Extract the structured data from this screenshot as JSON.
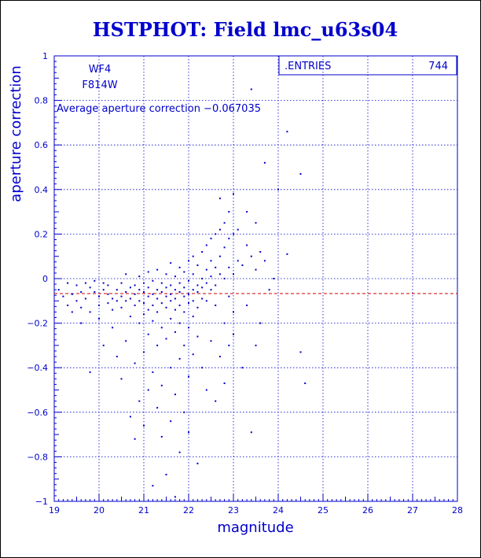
{
  "chart_data": {
    "type": "scatter",
    "title": "HSTPHOT: Field lmc_u63s04",
    "xlabel": "magnitude",
    "ylabel": "aperture correction",
    "xlim": [
      19,
      28
    ],
    "ylim": [
      -1,
      1
    ],
    "x_ticks": [
      19,
      20,
      21,
      22,
      23,
      24,
      25,
      26,
      27,
      28
    ],
    "y_ticks": [
      -1,
      -0.8,
      -0.6,
      -0.4,
      -0.2,
      0,
      0.2,
      0.4,
      0.6,
      0.8,
      1
    ],
    "x_tick_labels": [
      "19",
      "20",
      "21",
      "22",
      "23",
      "24",
      "25",
      "26",
      "27",
      "28"
    ],
    "y_tick_labels": [
      "−1",
      "−0.8",
      "−0.6",
      "−0.4",
      "−0.2",
      "0",
      "0.2",
      "0.4",
      "0.6",
      "0.8",
      "1"
    ],
    "grid": true,
    "chip": "WF4",
    "filter": "F814W",
    "annotation": "Average aperture correction −0.067035",
    "average_line": -0.067035,
    "stats_box": {
      "label": ".ENTRIES",
      "value": "744",
      "placement": "top-right"
    },
    "colors": {
      "points": "#0000cc",
      "average_line": "#cc0000",
      "text": "#0000cc",
      "background": "#ffffff"
    },
    "points": [
      [
        19.1,
        -0.05
      ],
      [
        19.2,
        -0.08
      ],
      [
        19.3,
        -0.02
      ],
      [
        19.3,
        -0.12
      ],
      [
        19.4,
        -0.15
      ],
      [
        19.4,
        -0.07
      ],
      [
        19.5,
        -0.03
      ],
      [
        19.5,
        -0.1
      ],
      [
        19.6,
        -0.13
      ],
      [
        19.6,
        -0.06
      ],
      [
        19.6,
        -0.2
      ],
      [
        19.7,
        -0.02
      ],
      [
        19.7,
        -0.09
      ],
      [
        19.8,
        -0.04
      ],
      [
        19.8,
        -0.15
      ],
      [
        19.8,
        -0.42
      ],
      [
        19.9,
        -0.06
      ],
      [
        19.9,
        -0.01
      ],
      [
        20.0,
        -0.08
      ],
      [
        20.0,
        -0.12
      ],
      [
        20.0,
        -0.18
      ],
      [
        20.1,
        -0.05
      ],
      [
        20.1,
        -0.02
      ],
      [
        20.1,
        -0.3
      ],
      [
        20.2,
        -0.07
      ],
      [
        20.2,
        -0.11
      ],
      [
        20.2,
        -0.03
      ],
      [
        20.3,
        -0.09
      ],
      [
        20.3,
        -0.14
      ],
      [
        20.3,
        -0.22
      ],
      [
        20.4,
        -0.05
      ],
      [
        20.4,
        -0.1
      ],
      [
        20.4,
        -0.35
      ],
      [
        20.5,
        -0.08
      ],
      [
        20.5,
        -0.02
      ],
      [
        20.5,
        -0.13
      ],
      [
        20.5,
        -0.45
      ],
      [
        20.6,
        -0.06
      ],
      [
        20.6,
        -0.1
      ],
      [
        20.6,
        0.02
      ],
      [
        20.6,
        -0.28
      ],
      [
        20.7,
        -0.04
      ],
      [
        20.7,
        -0.09
      ],
      [
        20.7,
        -0.17
      ],
      [
        20.7,
        -0.62
      ],
      [
        20.8,
        -0.07
      ],
      [
        20.8,
        -0.03
      ],
      [
        20.8,
        -0.12
      ],
      [
        20.8,
        -0.38
      ],
      [
        20.8,
        -0.72
      ],
      [
        20.9,
        -0.05
      ],
      [
        20.9,
        -0.1
      ],
      [
        20.9,
        0.01
      ],
      [
        20.9,
        -0.2
      ],
      [
        20.9,
        -0.55
      ],
      [
        21.0,
        -0.06
      ],
      [
        21.0,
        -0.02
      ],
      [
        21.0,
        -0.11
      ],
      [
        21.0,
        -0.16
      ],
      [
        21.0,
        -0.33
      ],
      [
        21.0,
        -0.66
      ],
      [
        21.1,
        -0.04
      ],
      [
        21.1,
        -0.08
      ],
      [
        21.1,
        0.03
      ],
      [
        21.1,
        -0.14
      ],
      [
        21.1,
        -0.25
      ],
      [
        21.1,
        -0.5
      ],
      [
        21.2,
        -0.07
      ],
      [
        21.2,
        -0.01
      ],
      [
        21.2,
        -0.12
      ],
      [
        21.2,
        -0.19
      ],
      [
        21.2,
        -0.42
      ],
      [
        21.2,
        -0.93
      ],
      [
        21.3,
        -0.05
      ],
      [
        21.3,
        -0.09
      ],
      [
        21.3,
        0.04
      ],
      [
        21.3,
        -0.15
      ],
      [
        21.3,
        -0.3
      ],
      [
        21.3,
        -0.58
      ],
      [
        21.4,
        -0.06
      ],
      [
        21.4,
        -0.02
      ],
      [
        21.4,
        -0.11
      ],
      [
        21.4,
        -0.22
      ],
      [
        21.4,
        -0.48
      ],
      [
        21.4,
        -0.71
      ],
      [
        21.5,
        -0.04
      ],
      [
        21.5,
        -0.08
      ],
      [
        21.5,
        0.02
      ],
      [
        21.5,
        -0.13
      ],
      [
        21.5,
        -0.27
      ],
      [
        21.5,
        -0.88
      ],
      [
        21.6,
        -0.07
      ],
      [
        21.6,
        -0.03
      ],
      [
        21.6,
        -0.1
      ],
      [
        21.6,
        0.07
      ],
      [
        21.6,
        -0.18
      ],
      [
        21.6,
        -0.4
      ],
      [
        21.6,
        -0.64
      ],
      [
        21.7,
        -0.05
      ],
      [
        21.7,
        -0.09
      ],
      [
        21.7,
        0.01
      ],
      [
        21.7,
        -0.14
      ],
      [
        21.7,
        -0.24
      ],
      [
        21.7,
        -0.52
      ],
      [
        21.7,
        -0.98
      ],
      [
        21.8,
        -0.06
      ],
      [
        21.8,
        -0.02
      ],
      [
        21.8,
        -0.12
      ],
      [
        21.8,
        0.05
      ],
      [
        21.8,
        -0.2
      ],
      [
        21.8,
        -0.36
      ],
      [
        21.8,
        -0.78
      ],
      [
        21.9,
        -0.04
      ],
      [
        21.9,
        -0.08
      ],
      [
        21.9,
        0.03
      ],
      [
        21.9,
        -0.15
      ],
      [
        21.9,
        -0.3
      ],
      [
        21.9,
        -0.6
      ],
      [
        22.0,
        -0.07
      ],
      [
        22.0,
        -0.01
      ],
      [
        22.0,
        -0.11
      ],
      [
        22.0,
        0.08
      ],
      [
        22.0,
        -0.22
      ],
      [
        22.0,
        -0.44
      ],
      [
        22.0,
        -0.69
      ],
      [
        22.1,
        -0.05
      ],
      [
        22.1,
        -0.1
      ],
      [
        22.1,
        0.02
      ],
      [
        22.1,
        0.1
      ],
      [
        22.1,
        -0.17
      ],
      [
        22.1,
        -0.34
      ],
      [
        22.2,
        -0.06
      ],
      [
        22.2,
        -0.03
      ],
      [
        22.2,
        0.06
      ],
      [
        22.2,
        -0.13
      ],
      [
        22.2,
        -0.26
      ],
      [
        22.2,
        -0.83
      ],
      [
        22.3,
        -0.04
      ],
      [
        22.3,
        0.0
      ],
      [
        22.3,
        0.12
      ],
      [
        22.3,
        -0.09
      ],
      [
        22.3,
        -0.4
      ],
      [
        22.4,
        -0.02
      ],
      [
        22.4,
        0.04
      ],
      [
        22.4,
        0.15
      ],
      [
        22.4,
        -0.1
      ],
      [
        22.4,
        -0.5
      ],
      [
        22.5,
        0.01
      ],
      [
        22.5,
        0.08
      ],
      [
        22.5,
        0.18
      ],
      [
        22.5,
        -0.05
      ],
      [
        22.5,
        -0.28
      ],
      [
        22.6,
        -0.03
      ],
      [
        22.6,
        0.05
      ],
      [
        22.6,
        0.2
      ],
      [
        22.6,
        -0.12
      ],
      [
        22.6,
        -0.55
      ],
      [
        22.7,
        0.02
      ],
      [
        22.7,
        0.1
      ],
      [
        22.7,
        0.22
      ],
      [
        22.7,
        0.36
      ],
      [
        22.7,
        -0.35
      ],
      [
        22.8,
        0.0
      ],
      [
        22.8,
        0.14
      ],
      [
        22.8,
        0.25
      ],
      [
        22.8,
        -0.2
      ],
      [
        22.8,
        -0.47
      ],
      [
        22.9,
        0.05
      ],
      [
        22.9,
        0.18
      ],
      [
        22.9,
        0.3
      ],
      [
        22.9,
        -0.08
      ],
      [
        22.9,
        -0.3
      ],
      [
        23.0,
        0.02
      ],
      [
        23.0,
        0.2
      ],
      [
        23.0,
        0.38
      ],
      [
        23.0,
        -0.15
      ],
      [
        23.0,
        -0.25
      ],
      [
        23.1,
        0.08
      ],
      [
        23.1,
        0.22
      ],
      [
        23.2,
        0.06
      ],
      [
        23.2,
        -0.4
      ],
      [
        23.3,
        0.15
      ],
      [
        23.3,
        0.3
      ],
      [
        23.3,
        -0.12
      ],
      [
        23.4,
        0.1
      ],
      [
        23.4,
        0.85
      ],
      [
        23.4,
        -0.69
      ],
      [
        23.5,
        0.25
      ],
      [
        23.5,
        0.04
      ],
      [
        23.5,
        -0.3
      ],
      [
        23.6,
        0.12
      ],
      [
        23.6,
        -0.2
      ],
      [
        23.7,
        0.52
      ],
      [
        23.7,
        0.08
      ],
      [
        23.8,
        -0.05
      ],
      [
        23.9,
        0.0
      ],
      [
        24.0,
        0.4
      ],
      [
        24.2,
        0.66
      ],
      [
        24.2,
        0.11
      ],
      [
        24.5,
        0.47
      ],
      [
        24.5,
        -0.33
      ],
      [
        24.6,
        -0.47
      ]
    ]
  }
}
